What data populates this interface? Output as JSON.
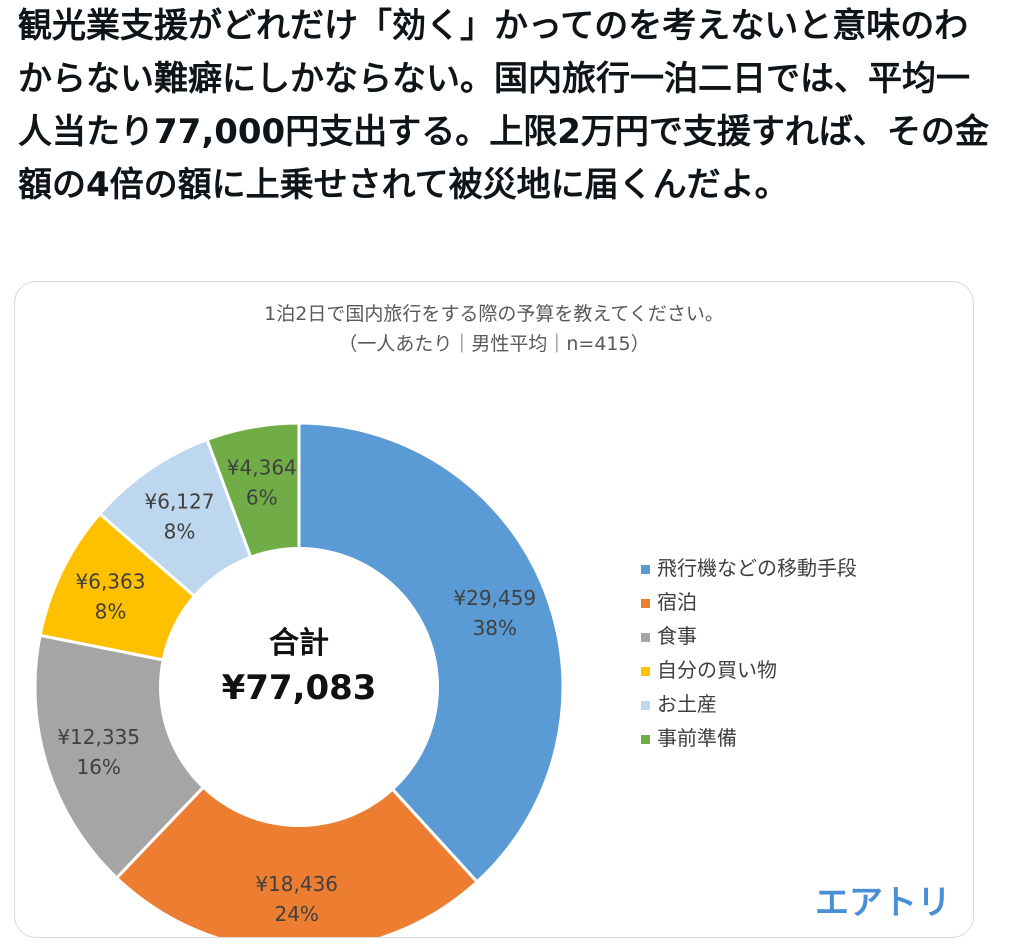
{
  "post": {
    "text": "観光業支援がどれだけ「効く」かってのを考えないと意味のわからない難癖にしかならない。国内旅行一泊二日では、平均一人当たり77,000円支出する。上限2万円で支援すれば、その金額の4倍の額に上乗せされて被災地に届くんだよ。"
  },
  "chart_data": {
    "type": "pie",
    "title": "1泊2日で国内旅行をする際の予算を教えてください。",
    "subtitle": "（一人あたり｜男性平均｜n=415）",
    "center_label": "合計",
    "center_value": "¥77,083",
    "legend_position": "right",
    "slices": [
      {
        "label": "飛行機などの移動手段",
        "value": 29459,
        "value_text": "¥29,459",
        "percent_text": "38%",
        "color": "#5b9bd5"
      },
      {
        "label": "宿泊",
        "value": 18436,
        "value_text": "¥18,436",
        "percent_text": "24%",
        "color": "#ed7d31"
      },
      {
        "label": "食事",
        "value": 12335,
        "value_text": "¥12,335",
        "percent_text": "16%",
        "color": "#a5a5a5"
      },
      {
        "label": "自分の買い物",
        "value": 6363,
        "value_text": "¥6,363",
        "percent_text": "8%",
        "color": "#ffc000"
      },
      {
        "label": "お土産",
        "value": 6127,
        "value_text": "¥6,127",
        "percent_text": "8%",
        "color": "#bdd7ee"
      },
      {
        "label": "事前準備",
        "value": 4364,
        "value_text": "¥4,364",
        "percent_text": "6%",
        "color": "#70ad47"
      }
    ]
  },
  "logo": {
    "text": "エアトリ"
  }
}
